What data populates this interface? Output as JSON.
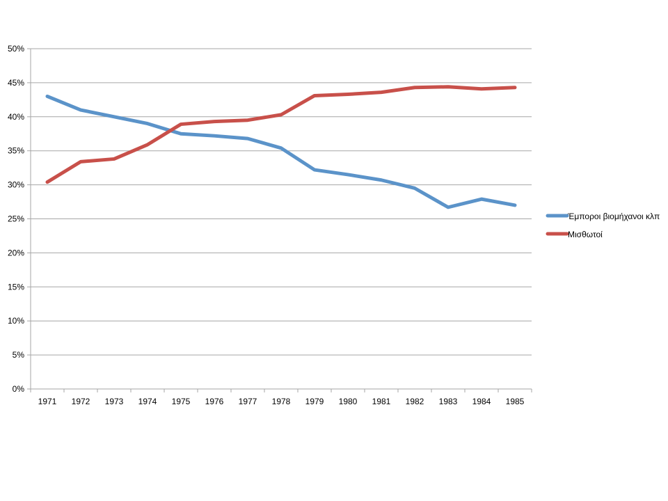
{
  "chart_data": {
    "type": "line",
    "categories": [
      "1971",
      "1972",
      "1973",
      "1974",
      "1975",
      "1976",
      "1977",
      "1978",
      "1979",
      "1980",
      "1981",
      "1982",
      "1983",
      "1984",
      "1985"
    ],
    "series": [
      {
        "name": "Έμποροι βιομήχανοι κλπ",
        "color": "#5b93c9",
        "values": [
          43.0,
          41.0,
          40.0,
          39.0,
          37.5,
          37.2,
          36.8,
          35.4,
          32.2,
          31.5,
          30.7,
          29.5,
          26.7,
          27.9,
          27.0
        ]
      },
      {
        "name": "Μισθωτοί",
        "color": "#c8504a",
        "values": [
          30.4,
          33.4,
          33.8,
          35.9,
          38.9,
          39.3,
          39.5,
          40.3,
          43.1,
          43.3,
          43.6,
          44.3,
          44.4,
          44.1,
          44.3
        ]
      }
    ],
    "ylim": [
      0,
      50
    ],
    "yticks": [
      "0%",
      "5%",
      "10%",
      "15%",
      "20%",
      "25%",
      "30%",
      "35%",
      "40%",
      "45%",
      "50%"
    ],
    "grid": true,
    "legend_position": "right",
    "title": "",
    "xlabel": "",
    "ylabel": ""
  }
}
